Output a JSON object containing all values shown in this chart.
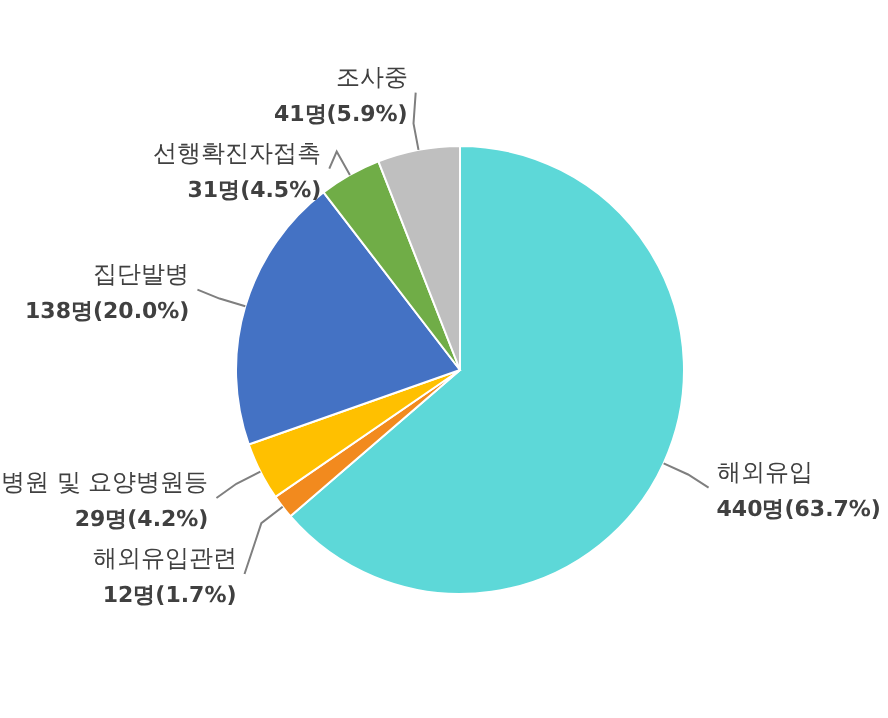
{
  "chart_data": {
    "type": "pie",
    "categories": [
      "해외유입",
      "해외유입관련",
      "병원 및 요양병원등",
      "집단발병",
      "선행확진자접촉",
      "조사중"
    ],
    "values": [
      440,
      12,
      29,
      138,
      31,
      41
    ],
    "colors": [
      "#5dd8d8",
      "#f28a1e",
      "#ffc000",
      "#4472c4",
      "#70ad47",
      "#bfbfbf"
    ],
    "value_labels": [
      "440명(63.7%)",
      "12명(1.7%)",
      "29명(4.2%)",
      "138명(20.0%)",
      "31명(4.5%)",
      "41명(5.9%)"
    ]
  }
}
